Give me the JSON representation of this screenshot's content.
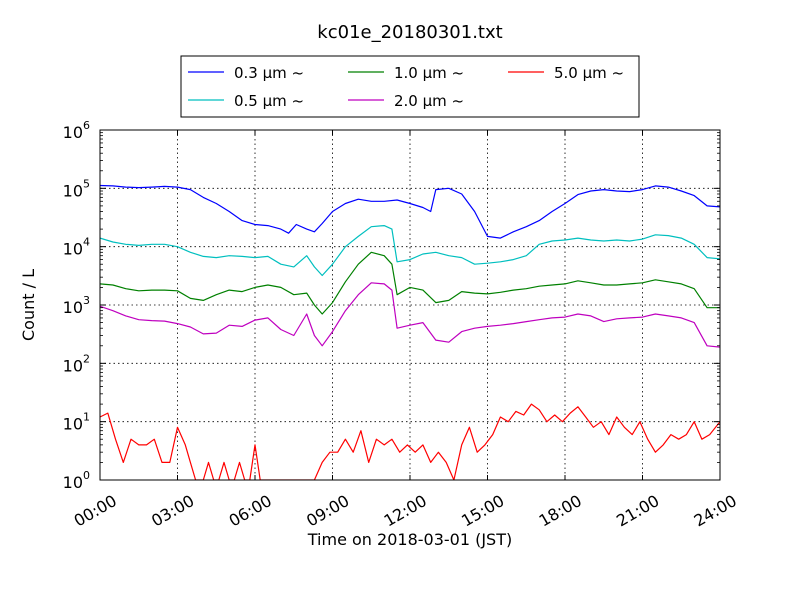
{
  "chart_data": {
    "type": "line",
    "title": "kc01e_20180301.txt",
    "xlabel": "Time on 2018-03-01 (JST)",
    "ylabel": "Count / L",
    "yscale": "log",
    "xlim": [
      0,
      24
    ],
    "ylim": [
      1,
      1000000
    ],
    "grid": true,
    "legend_position": "top",
    "x_ticks": [
      "00:00",
      "03:00",
      "06:00",
      "09:00",
      "12:00",
      "15:00",
      "18:00",
      "21:00",
      "24:00"
    ],
    "y_ticks": [
      {
        "base": "10",
        "exp": "0",
        "value": 1
      },
      {
        "base": "10",
        "exp": "1",
        "value": 10
      },
      {
        "base": "10",
        "exp": "2",
        "value": 100
      },
      {
        "base": "10",
        "exp": "3",
        "value": 1000
      },
      {
        "base": "10",
        "exp": "4",
        "value": 10000
      },
      {
        "base": "10",
        "exp": "5",
        "value": 100000
      },
      {
        "base": "10",
        "exp": "6",
        "value": 1000000
      }
    ],
    "series": [
      {
        "name": "0.3 μm ~",
        "color": "#0000ff",
        "points": [
          [
            0,
            112000
          ],
          [
            0.5,
            110000
          ],
          [
            1,
            105000
          ],
          [
            1.5,
            103000
          ],
          [
            2,
            105000
          ],
          [
            2.5,
            108000
          ],
          [
            3,
            105000
          ],
          [
            3.5,
            95000
          ],
          [
            4,
            70000
          ],
          [
            4.5,
            55000
          ],
          [
            5,
            40000
          ],
          [
            5.5,
            28000
          ],
          [
            6,
            24000
          ],
          [
            6.5,
            23000
          ],
          [
            7,
            20000
          ],
          [
            7.3,
            17000
          ],
          [
            7.6,
            24000
          ],
          [
            8,
            20000
          ],
          [
            8.3,
            18000
          ],
          [
            8.6,
            25000
          ],
          [
            9,
            40000
          ],
          [
            9.5,
            55000
          ],
          [
            10,
            65000
          ],
          [
            10.5,
            60000
          ],
          [
            11,
            60000
          ],
          [
            11.5,
            63000
          ],
          [
            12,
            55000
          ],
          [
            12.5,
            47000
          ],
          [
            12.8,
            40000
          ],
          [
            13,
            95000
          ],
          [
            13.5,
            100000
          ],
          [
            14,
            80000
          ],
          [
            14.5,
            40000
          ],
          [
            15,
            15000
          ],
          [
            15.5,
            14000
          ],
          [
            16,
            18000
          ],
          [
            16.5,
            22000
          ],
          [
            17,
            28000
          ],
          [
            17.5,
            40000
          ],
          [
            18,
            55000
          ],
          [
            18.5,
            78000
          ],
          [
            19,
            90000
          ],
          [
            19.5,
            95000
          ],
          [
            20,
            90000
          ],
          [
            20.5,
            88000
          ],
          [
            21,
            95000
          ],
          [
            21.5,
            110000
          ],
          [
            22,
            105000
          ],
          [
            22.5,
            90000
          ],
          [
            23,
            75000
          ],
          [
            23.5,
            50000
          ],
          [
            24,
            48000
          ]
        ]
      },
      {
        "name": "0.5 μm ~",
        "color": "#00bfbf",
        "points": [
          [
            0,
            14000
          ],
          [
            0.5,
            12000
          ],
          [
            1,
            11000
          ],
          [
            1.5,
            10500
          ],
          [
            2,
            11000
          ],
          [
            2.5,
            11000
          ],
          [
            3,
            10000
          ],
          [
            3.5,
            8000
          ],
          [
            4,
            6800
          ],
          [
            4.5,
            6500
          ],
          [
            5,
            7000
          ],
          [
            5.5,
            6800
          ],
          [
            6,
            6500
          ],
          [
            6.5,
            6800
          ],
          [
            7,
            5000
          ],
          [
            7.5,
            4500
          ],
          [
            8,
            7000
          ],
          [
            8.3,
            4500
          ],
          [
            8.6,
            3200
          ],
          [
            9,
            5000
          ],
          [
            9.5,
            10000
          ],
          [
            10,
            15000
          ],
          [
            10.5,
            22000
          ],
          [
            11,
            23000
          ],
          [
            11.3,
            20000
          ],
          [
            11.5,
            5500
          ],
          [
            12,
            6000
          ],
          [
            12.5,
            7500
          ],
          [
            13,
            8000
          ],
          [
            13.5,
            7000
          ],
          [
            14,
            6500
          ],
          [
            14.5,
            5000
          ],
          [
            15,
            5200
          ],
          [
            15.5,
            5500
          ],
          [
            16,
            6000
          ],
          [
            16.5,
            7000
          ],
          [
            17,
            11000
          ],
          [
            17.5,
            12500
          ],
          [
            18,
            13000
          ],
          [
            18.5,
            14000
          ],
          [
            19,
            13000
          ],
          [
            19.5,
            12500
          ],
          [
            20,
            13000
          ],
          [
            20.5,
            12500
          ],
          [
            21,
            13500
          ],
          [
            21.5,
            16000
          ],
          [
            22,
            15500
          ],
          [
            22.5,
            14000
          ],
          [
            23,
            11000
          ],
          [
            23.5,
            6500
          ],
          [
            24,
            6200
          ]
        ]
      },
      {
        "name": "1.0 μm ~",
        "color": "#008000",
        "points": [
          [
            0,
            2300
          ],
          [
            0.5,
            2200
          ],
          [
            1,
            1900
          ],
          [
            1.5,
            1750
          ],
          [
            2,
            1800
          ],
          [
            2.5,
            1800
          ],
          [
            3,
            1750
          ],
          [
            3.5,
            1300
          ],
          [
            4,
            1200
          ],
          [
            4.5,
            1500
          ],
          [
            5,
            1800
          ],
          [
            5.5,
            1700
          ],
          [
            6,
            2000
          ],
          [
            6.5,
            2200
          ],
          [
            7,
            2000
          ],
          [
            7.5,
            1500
          ],
          [
            8,
            1600
          ],
          [
            8.3,
            1000
          ],
          [
            8.6,
            700
          ],
          [
            9,
            1100
          ],
          [
            9.5,
            2500
          ],
          [
            10,
            5000
          ],
          [
            10.5,
            8000
          ],
          [
            11,
            7000
          ],
          [
            11.3,
            5000
          ],
          [
            11.5,
            1500
          ],
          [
            12,
            2000
          ],
          [
            12.5,
            1800
          ],
          [
            13,
            1100
          ],
          [
            13.5,
            1200
          ],
          [
            14,
            1700
          ],
          [
            14.5,
            1600
          ],
          [
            15,
            1550
          ],
          [
            15.5,
            1650
          ],
          [
            16,
            1800
          ],
          [
            16.5,
            1900
          ],
          [
            17,
            2100
          ],
          [
            17.5,
            2200
          ],
          [
            18,
            2300
          ],
          [
            18.5,
            2600
          ],
          [
            19,
            2400
          ],
          [
            19.5,
            2200
          ],
          [
            20,
            2200
          ],
          [
            20.5,
            2300
          ],
          [
            21,
            2400
          ],
          [
            21.5,
            2700
          ],
          [
            22,
            2500
          ],
          [
            22.5,
            2300
          ],
          [
            23,
            1900
          ],
          [
            23.5,
            900
          ],
          [
            24,
            900
          ]
        ]
      },
      {
        "name": "2.0 μm ~",
        "color": "#bf00bf",
        "points": [
          [
            0,
            950
          ],
          [
            0.5,
            800
          ],
          [
            1,
            650
          ],
          [
            1.5,
            560
          ],
          [
            2,
            540
          ],
          [
            2.5,
            530
          ],
          [
            3,
            480
          ],
          [
            3.5,
            420
          ],
          [
            4,
            320
          ],
          [
            4.5,
            330
          ],
          [
            5,
            450
          ],
          [
            5.5,
            430
          ],
          [
            6,
            550
          ],
          [
            6.5,
            600
          ],
          [
            7,
            380
          ],
          [
            7.5,
            300
          ],
          [
            8,
            700
          ],
          [
            8.3,
            300
          ],
          [
            8.6,
            200
          ],
          [
            9,
            350
          ],
          [
            9.5,
            800
          ],
          [
            10,
            1500
          ],
          [
            10.5,
            2400
          ],
          [
            11,
            2300
          ],
          [
            11.3,
            1800
          ],
          [
            11.5,
            400
          ],
          [
            12,
            450
          ],
          [
            12.5,
            500
          ],
          [
            13,
            250
          ],
          [
            13.5,
            230
          ],
          [
            14,
            350
          ],
          [
            14.5,
            400
          ],
          [
            15,
            430
          ],
          [
            15.5,
            450
          ],
          [
            16,
            480
          ],
          [
            16.5,
            520
          ],
          [
            17,
            560
          ],
          [
            17.5,
            600
          ],
          [
            18,
            620
          ],
          [
            18.5,
            700
          ],
          [
            19,
            650
          ],
          [
            19.5,
            520
          ],
          [
            20,
            580
          ],
          [
            20.5,
            600
          ],
          [
            21,
            620
          ],
          [
            21.5,
            700
          ],
          [
            22,
            650
          ],
          [
            22.5,
            600
          ],
          [
            23,
            500
          ],
          [
            23.5,
            200
          ],
          [
            24,
            190
          ]
        ]
      },
      {
        "name": "5.0 μm ~",
        "color": "#ff0000",
        "points": [
          [
            0,
            12
          ],
          [
            0.3,
            14
          ],
          [
            0.6,
            5
          ],
          [
            0.9,
            2
          ],
          [
            1.2,
            5
          ],
          [
            1.5,
            4
          ],
          [
            1.8,
            4
          ],
          [
            2.1,
            5
          ],
          [
            2.4,
            2
          ],
          [
            2.7,
            2
          ],
          [
            3,
            8
          ],
          [
            3.3,
            4
          ],
          [
            3.5,
            2
          ],
          [
            3.7,
            1
          ],
          [
            4,
            1
          ],
          [
            4.2,
            2
          ],
          [
            4.4,
            1
          ],
          [
            4.6,
            1
          ],
          [
            4.8,
            2
          ],
          [
            5,
            1
          ],
          [
            5.2,
            1
          ],
          [
            5.4,
            2
          ],
          [
            5.6,
            1
          ],
          [
            5.8,
            1
          ],
          [
            6,
            4
          ],
          [
            6.2,
            1
          ],
          [
            6.4,
            1
          ],
          [
            6.6,
            1
          ],
          [
            6.8,
            1
          ],
          [
            7,
            1
          ],
          [
            7.2,
            1
          ],
          [
            7.4,
            1
          ],
          [
            7.6,
            1
          ],
          [
            7.8,
            1
          ],
          [
            8,
            1
          ],
          [
            8.3,
            1
          ],
          [
            8.6,
            2
          ],
          [
            8.9,
            3
          ],
          [
            9.2,
            3
          ],
          [
            9.5,
            5
          ],
          [
            9.8,
            3
          ],
          [
            10.1,
            7
          ],
          [
            10.4,
            2
          ],
          [
            10.7,
            5
          ],
          [
            11,
            4
          ],
          [
            11.3,
            5
          ],
          [
            11.6,
            3
          ],
          [
            11.9,
            4
          ],
          [
            12.2,
            3
          ],
          [
            12.5,
            4
          ],
          [
            12.8,
            2
          ],
          [
            13.1,
            3
          ],
          [
            13.4,
            2
          ],
          [
            13.7,
            1
          ],
          [
            14,
            4
          ],
          [
            14.3,
            8
          ],
          [
            14.6,
            3
          ],
          [
            14.9,
            4
          ],
          [
            15.2,
            6
          ],
          [
            15.5,
            12
          ],
          [
            15.8,
            10
          ],
          [
            16.1,
            15
          ],
          [
            16.4,
            13
          ],
          [
            16.7,
            20
          ],
          [
            17,
            16
          ],
          [
            17.3,
            10
          ],
          [
            17.6,
            13
          ],
          [
            17.9,
            10
          ],
          [
            18.2,
            14
          ],
          [
            18.5,
            18
          ],
          [
            18.8,
            12
          ],
          [
            19.1,
            8
          ],
          [
            19.4,
            10
          ],
          [
            19.7,
            6
          ],
          [
            20,
            12
          ],
          [
            20.3,
            8
          ],
          [
            20.6,
            6
          ],
          [
            20.9,
            10
          ],
          [
            21.2,
            5
          ],
          [
            21.5,
            3
          ],
          [
            21.8,
            4
          ],
          [
            22.1,
            6
          ],
          [
            22.4,
            5
          ],
          [
            22.7,
            6
          ],
          [
            23,
            10
          ],
          [
            23.3,
            5
          ],
          [
            23.6,
            6
          ],
          [
            24,
            10
          ]
        ]
      }
    ]
  }
}
